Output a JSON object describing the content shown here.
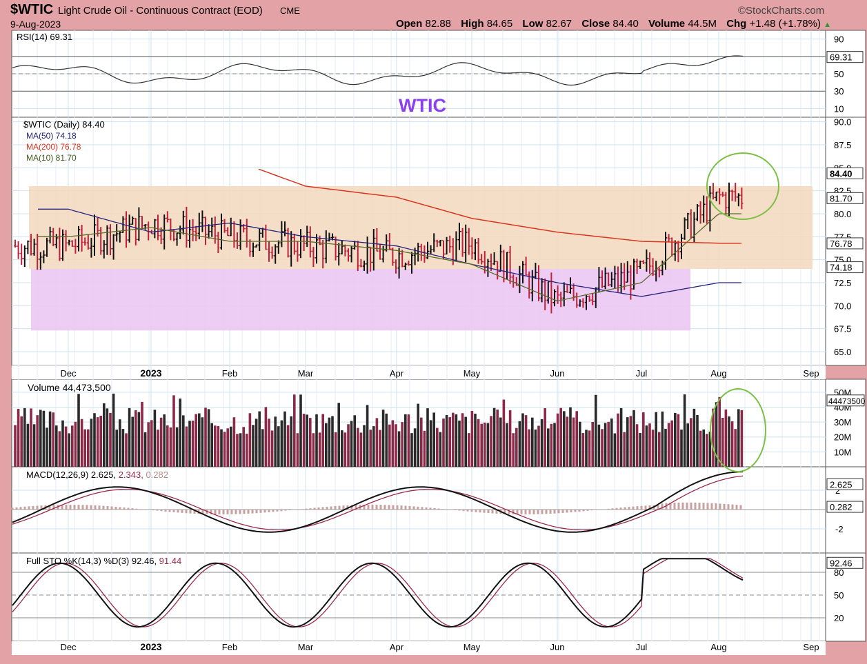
{
  "header": {
    "symbol": "$WTIC",
    "description": "Light Crude Oil - Continuous Contract (EOD)",
    "exchange": "CME",
    "brand": "©StockCharts.com",
    "date": "9-Aug-2023",
    "open_label": "Open",
    "open": "82.88",
    "high_label": "High",
    "high": "84.65",
    "low_label": "Low",
    "low": "82.67",
    "close_label": "Close",
    "close": "84.40",
    "volume_label": "Volume",
    "volume": "44.5M",
    "chg_label": "Chg",
    "chg": "+1.48 (+1.78%)"
  },
  "annotation": {
    "title": "WTIC"
  },
  "colors": {
    "background": "#e3a2a6",
    "panel": "#ffffff",
    "grid": "#cfe0ee",
    "up_bar": "#111111",
    "down_bar": "#c0203a",
    "ma50": "#23237a",
    "ma200": "#d8361e",
    "ma10": "#5a6a2a",
    "range_zone": "#f3d8bd",
    "support_zone": "#ebc8f2",
    "macd_signal": "#9b2a4a",
    "highlight_circle": "#7bc043",
    "annotation_text": "#8a3ff0"
  },
  "x_axis": {
    "labels": [
      "Dec",
      "2023",
      "Feb",
      "Mar",
      "Apr",
      "May",
      "Jun",
      "Jul",
      "Aug",
      "Sep"
    ]
  },
  "rsi": {
    "label": "RSI(14) 69.31",
    "value_badge": "69.31",
    "ticks": [
      "90",
      "70",
      "50",
      "30",
      "10"
    ]
  },
  "price": {
    "label": "$WTIC (Daily) 84.40",
    "ma50_label": "MA(50) 74.18",
    "ma200_label": "MA(200) 76.78",
    "ma10_label": "MA(10) 81.70",
    "ticks": [
      "90.0",
      "87.5",
      "85.0",
      "82.5",
      "80.0",
      "77.5",
      "75.0",
      "72.5",
      "70.0",
      "67.5",
      "65.0"
    ],
    "badge_close": "84.40",
    "badge_ma10": "81.70",
    "badge_ma200": "76.78",
    "badge_ma50": "74.18"
  },
  "volume": {
    "label": "Volume 44,473,500",
    "ticks": [
      "50M",
      "40M",
      "30M",
      "20M",
      "10M"
    ],
    "badge": "44473500"
  },
  "macd": {
    "label_main": "MACD(12,26,9) 2.625,",
    "label_signal": " 2.343,",
    "label_hist": " 0.282",
    "badge_macd": "2.625",
    "badge_hist": "0.282",
    "ticks": [
      "2",
      "-2"
    ]
  },
  "sto": {
    "label_main": "Full STO %K(14,3) %D(3) 92.46,",
    "label_d": " 91.44",
    "badge_k": "92.46",
    "ticks": [
      "80",
      "50",
      "20"
    ]
  },
  "chart_data": {
    "type": "line",
    "title": "$WTIC Light Crude Oil - Continuous Contract (EOD)",
    "x": [
      "Dec",
      "2023",
      "Feb",
      "Mar",
      "Apr",
      "May",
      "Jun",
      "Jul",
      "Aug"
    ],
    "series": [
      {
        "name": "$WTIC (Daily)",
        "values": [
          76.5,
          79.0,
          77.5,
          76.5,
          75.5,
          76.8,
          70.5,
          73.5,
          81.8
        ]
      },
      {
        "name": "MA(50)",
        "values": [
          80.5,
          78.0,
          79.0,
          77.5,
          76.5,
          74.5,
          72.5,
          71.0,
          72.5
        ]
      },
      {
        "name": "MA(200)",
        "values": [
          91.0,
          88.5,
          86.0,
          83.0,
          81.8,
          79.5,
          78.0,
          77.0,
          76.8
        ]
      },
      {
        "name": "MA(10)",
        "values": [
          77.5,
          78.5,
          77.0,
          77.0,
          76.0,
          74.5,
          70.5,
          72.5,
          80.0
        ]
      }
    ],
    "ylim": [
      63.5,
      90.5
    ],
    "ylabel": "",
    "xlabel": "",
    "last_values": {
      "close": 84.4,
      "ma50": 74.18,
      "ma200": 76.78,
      "ma10": 81.7,
      "rsi": 69.31,
      "volume": 44473500,
      "macd": 2.625,
      "macd_signal": 2.343,
      "macd_hist": 0.282,
      "sto_k": 92.46,
      "sto_d": 91.44
    },
    "zones": [
      {
        "name": "range",
        "from": 74.0,
        "to": 83.0
      },
      {
        "name": "support",
        "from": 67.3,
        "to": 74.0
      }
    ],
    "grid": true
  }
}
